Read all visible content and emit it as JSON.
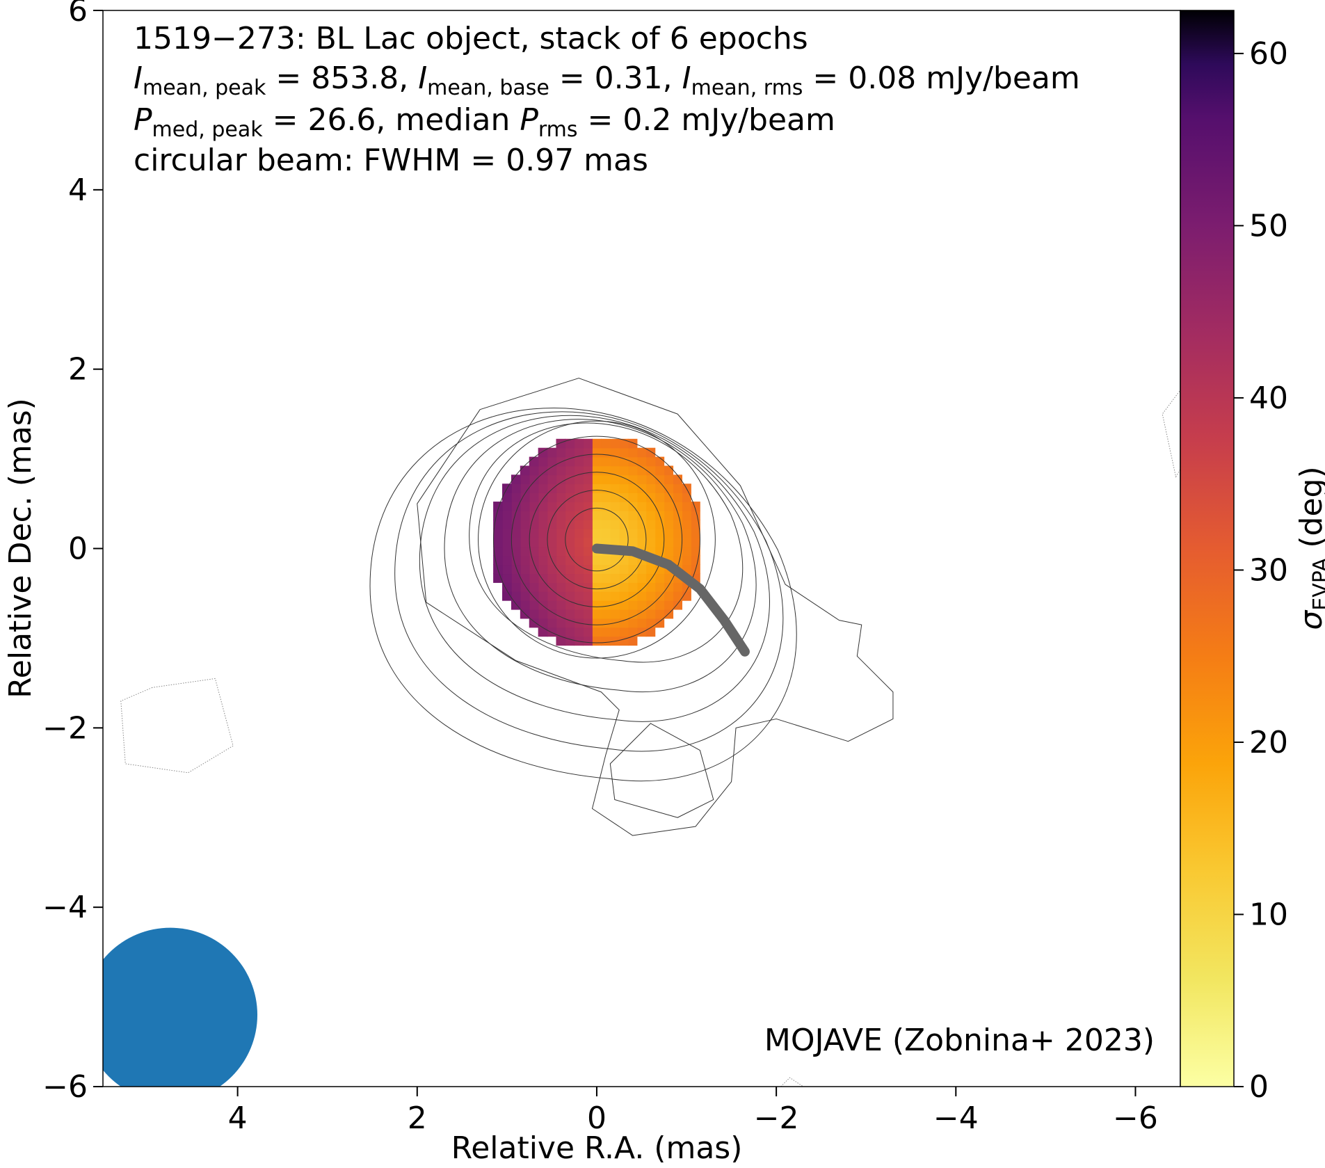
{
  "chart_data": {
    "type": "heatmap",
    "annotation": {
      "line1": "1519−273: BL Lac object, stack of 6 epochs",
      "line2": {
        "t1": "I",
        "s1": "mean, peak",
        "v1": " = 853.8, ",
        "t2": "I",
        "s2": "mean, base",
        "v2": " = 0.31, ",
        "t3": "I",
        "s3": "mean, rms",
        "v3": " = 0.08 mJy/beam"
      },
      "line3": {
        "t1": "P",
        "s1": "med, peak",
        "v1": " = 26.6, median ",
        "t2": "P",
        "s2": "rms",
        "v2": " = 0.2 mJy/beam"
      },
      "line4": "circular beam: FWHM = 0.97 mas",
      "credit": "MOJAVE (Zobnina+ 2023)"
    },
    "xlabel": "Relative R.A. (mas)",
    "ylabel": "Relative Dec. (mas)",
    "xlim": [
      5.5,
      -6.5
    ],
    "ylim": [
      -6,
      6
    ],
    "xticks": [
      4,
      2,
      0,
      -2,
      -4,
      -6
    ],
    "yticks": [
      -6,
      -4,
      -2,
      0,
      2,
      4,
      6
    ],
    "tick_labels_x": [
      "4",
      "2",
      "0",
      "−2",
      "−4",
      "−6"
    ],
    "tick_labels_y": [
      "−6",
      "−4",
      "−2",
      "0",
      "2",
      "4",
      "6"
    ],
    "colorbar": {
      "label_symbol": "σ",
      "label_sub": "EVPA",
      "label_unit": " (deg)",
      "range": [
        0,
        62.5
      ],
      "ticks": [
        0,
        10,
        20,
        30,
        40,
        50,
        60
      ],
      "tick_labels": [
        "0",
        "10",
        "20",
        "30",
        "40",
        "50",
        "60"
      ],
      "colormap": "inferno_r"
    },
    "polarization_map": {
      "center": [
        0,
        0.07
      ],
      "radius": 1.2,
      "pixel_size": 0.1,
      "east_value_range": [
        12,
        28
      ],
      "west_value_range": [
        30,
        52
      ]
    },
    "contours": {
      "center": [
        0,
        0.1
      ],
      "circular_radii": [
        0.35,
        0.55,
        0.75,
        0.95,
        1.15,
        1.32
      ],
      "extended_levels": 5,
      "negative_contour_style": "dotted"
    },
    "jet_ridgeline": [
      [
        0,
        0
      ],
      [
        -0.4,
        -0.03
      ],
      [
        -0.8,
        -0.18
      ],
      [
        -1.15,
        -0.45
      ],
      [
        -1.42,
        -0.8
      ],
      [
        -1.65,
        -1.15
      ]
    ],
    "beam": {
      "x": 4.75,
      "y": -5.2,
      "fwhm": 0.97
    },
    "colors": {
      "beam": "#1f77b4",
      "ridgeline": "#666666",
      "contour": "#333333"
    }
  }
}
